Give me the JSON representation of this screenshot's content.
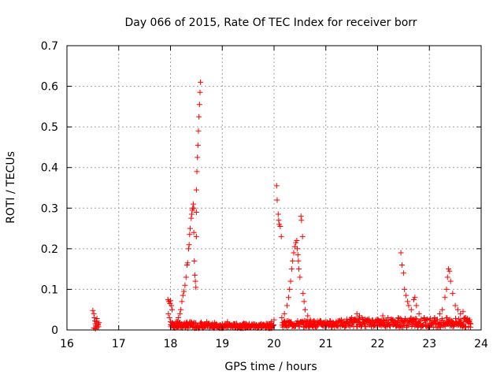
{
  "chart_data": {
    "type": "scatter",
    "title": "Day 066 of 2015, Rate Of TEC Index for receiver borr",
    "xlabel": "GPS time / hours",
    "ylabel": "ROTI / TECUs",
    "xlim": [
      16,
      24
    ],
    "ylim": [
      0,
      0.7
    ],
    "xticks": [
      16,
      17,
      18,
      19,
      20,
      21,
      22,
      23,
      24
    ],
    "yticks": [
      0,
      0.1,
      0.2,
      0.3,
      0.4,
      0.5,
      0.6,
      0.7
    ],
    "xtick_labels": [
      "16",
      "17",
      "18",
      "19",
      "20",
      "21",
      "22",
      "23",
      "24"
    ],
    "ytick_labels": [
      "0",
      "0.1",
      "0.2",
      "0.3",
      "0.4",
      "0.5",
      "0.6",
      "0.7"
    ],
    "grid": true,
    "marker": "+",
    "color": "#ff0000",
    "points": [
      [
        16.5,
        0.048
      ],
      [
        16.52,
        0.04
      ],
      [
        16.53,
        0.03
      ],
      [
        16.54,
        0.022
      ],
      [
        16.55,
        0.015
      ],
      [
        16.56,
        0.01
      ],
      [
        16.57,
        0.02
      ],
      [
        16.58,
        0.028
      ],
      [
        16.6,
        0.012
      ],
      [
        16.61,
        0.008
      ],
      [
        16.62,
        0.018
      ],
      [
        16.52,
        0.005
      ],
      [
        16.55,
        0.003
      ],
      [
        16.58,
        0.006
      ],
      [
        16.6,
        0.015
      ],
      [
        17.95,
        0.075
      ],
      [
        17.97,
        0.07
      ],
      [
        17.99,
        0.065
      ],
      [
        18.0,
        0.072
      ],
      [
        18.02,
        0.06
      ],
      [
        18.03,
        0.05
      ],
      [
        17.96,
        0.04
      ],
      [
        17.98,
        0.03
      ],
      [
        18.0,
        0.02
      ],
      [
        18.05,
        0.015
      ],
      [
        18.1,
        0.012
      ],
      [
        18.12,
        0.02
      ],
      [
        18.15,
        0.03
      ],
      [
        18.18,
        0.04
      ],
      [
        18.2,
        0.05
      ],
      [
        18.22,
        0.07
      ],
      [
        18.24,
        0.085
      ],
      [
        18.26,
        0.095
      ],
      [
        18.28,
        0.11
      ],
      [
        18.3,
        0.13
      ],
      [
        18.32,
        0.16
      ],
      [
        18.33,
        0.165
      ],
      [
        18.35,
        0.2
      ],
      [
        18.36,
        0.21
      ],
      [
        18.37,
        0.235
      ],
      [
        18.38,
        0.25
      ],
      [
        18.4,
        0.275
      ],
      [
        18.41,
        0.285
      ],
      [
        18.42,
        0.295
      ],
      [
        18.43,
        0.3
      ],
      [
        18.44,
        0.31
      ],
      [
        18.45,
        0.3
      ],
      [
        18.45,
        0.24
      ],
      [
        18.46,
        0.17
      ],
      [
        18.47,
        0.135
      ],
      [
        18.48,
        0.12
      ],
      [
        18.49,
        0.105
      ],
      [
        18.5,
        0.23
      ],
      [
        18.5,
        0.29
      ],
      [
        18.5,
        0.345
      ],
      [
        18.51,
        0.39
      ],
      [
        18.52,
        0.425
      ],
      [
        18.53,
        0.455
      ],
      [
        18.54,
        0.49
      ],
      [
        18.55,
        0.525
      ],
      [
        18.56,
        0.555
      ],
      [
        18.57,
        0.585
      ],
      [
        18.58,
        0.61
      ],
      [
        18.6,
        0.015
      ],
      [
        18.65,
        0.012
      ],
      [
        18.7,
        0.02
      ],
      [
        18.75,
        0.015
      ],
      [
        18.8,
        0.01
      ],
      [
        18.85,
        0.018
      ],
      [
        18.9,
        0.012
      ],
      [
        18.95,
        0.008
      ],
      [
        19.0,
        0.015
      ],
      [
        19.05,
        0.01
      ],
      [
        19.1,
        0.02
      ],
      [
        19.15,
        0.012
      ],
      [
        19.2,
        0.008
      ],
      [
        19.25,
        0.015
      ],
      [
        19.3,
        0.01
      ],
      [
        19.35,
        0.012
      ],
      [
        19.4,
        0.01
      ],
      [
        19.45,
        0.015
      ],
      [
        19.5,
        0.012
      ],
      [
        19.55,
        0.008
      ],
      [
        19.6,
        0.015
      ],
      [
        19.65,
        0.01
      ],
      [
        19.7,
        0.012
      ],
      [
        19.75,
        0.015
      ],
      [
        19.8,
        0.01
      ],
      [
        19.85,
        0.012
      ],
      [
        19.9,
        0.015
      ],
      [
        19.95,
        0.02
      ],
      [
        20.0,
        0.025
      ],
      [
        20.05,
        0.355
      ],
      [
        20.06,
        0.32
      ],
      [
        20.08,
        0.285
      ],
      [
        20.09,
        0.27
      ],
      [
        20.1,
        0.26
      ],
      [
        20.12,
        0.255
      ],
      [
        20.14,
        0.23
      ],
      [
        20.15,
        0.03
      ],
      [
        20.2,
        0.04
      ],
      [
        20.25,
        0.06
      ],
      [
        20.28,
        0.08
      ],
      [
        20.3,
        0.1
      ],
      [
        20.32,
        0.12
      ],
      [
        20.34,
        0.15
      ],
      [
        20.36,
        0.17
      ],
      [
        20.38,
        0.19
      ],
      [
        20.4,
        0.205
      ],
      [
        20.42,
        0.215
      ],
      [
        20.44,
        0.22
      ],
      [
        20.45,
        0.2
      ],
      [
        20.46,
        0.185
      ],
      [
        20.47,
        0.17
      ],
      [
        20.48,
        0.15
      ],
      [
        20.5,
        0.13
      ],
      [
        20.52,
        0.28
      ],
      [
        20.53,
        0.27
      ],
      [
        20.55,
        0.23
      ],
      [
        20.56,
        0.09
      ],
      [
        20.58,
        0.07
      ],
      [
        20.6,
        0.05
      ],
      [
        20.65,
        0.035
      ],
      [
        20.7,
        0.025
      ],
      [
        20.75,
        0.02
      ],
      [
        20.8,
        0.018
      ],
      [
        20.9,
        0.015
      ],
      [
        21.0,
        0.02
      ],
      [
        21.1,
        0.015
      ],
      [
        21.2,
        0.02
      ],
      [
        21.3,
        0.025
      ],
      [
        21.4,
        0.02
      ],
      [
        21.5,
        0.03
      ],
      [
        21.6,
        0.04
      ],
      [
        21.65,
        0.035
      ],
      [
        21.7,
        0.03
      ],
      [
        21.8,
        0.025
      ],
      [
        21.9,
        0.02
      ],
      [
        22.0,
        0.025
      ],
      [
        22.1,
        0.035
      ],
      [
        22.2,
        0.03
      ],
      [
        22.3,
        0.025
      ],
      [
        22.4,
        0.03
      ],
      [
        22.45,
        0.19
      ],
      [
        22.47,
        0.16
      ],
      [
        22.5,
        0.14
      ],
      [
        22.52,
        0.1
      ],
      [
        22.55,
        0.085
      ],
      [
        22.58,
        0.07
      ],
      [
        22.6,
        0.06
      ],
      [
        22.65,
        0.05
      ],
      [
        22.7,
        0.075
      ],
      [
        22.72,
        0.08
      ],
      [
        22.75,
        0.06
      ],
      [
        22.8,
        0.04
      ],
      [
        22.9,
        0.03
      ],
      [
        23.0,
        0.025
      ],
      [
        23.1,
        0.03
      ],
      [
        23.2,
        0.04
      ],
      [
        23.25,
        0.05
      ],
      [
        23.3,
        0.08
      ],
      [
        23.33,
        0.1
      ],
      [
        23.35,
        0.13
      ],
      [
        23.37,
        0.15
      ],
      [
        23.39,
        0.145
      ],
      [
        23.41,
        0.12
      ],
      [
        23.45,
        0.09
      ],
      [
        23.5,
        0.06
      ],
      [
        23.55,
        0.05
      ],
      [
        23.6,
        0.04
      ],
      [
        23.65,
        0.045
      ],
      [
        23.7,
        0.03
      ],
      [
        23.75,
        0.02
      ],
      [
        23.8,
        0.015
      ]
    ],
    "baseline_segments": [
      [
        18.0,
        18.6,
        0.012,
        0.008
      ],
      [
        18.6,
        20.0,
        0.01,
        0.006
      ],
      [
        20.15,
        21.4,
        0.015,
        0.008
      ],
      [
        21.4,
        22.4,
        0.018,
        0.01
      ],
      [
        22.4,
        23.8,
        0.018,
        0.012
      ]
    ]
  }
}
